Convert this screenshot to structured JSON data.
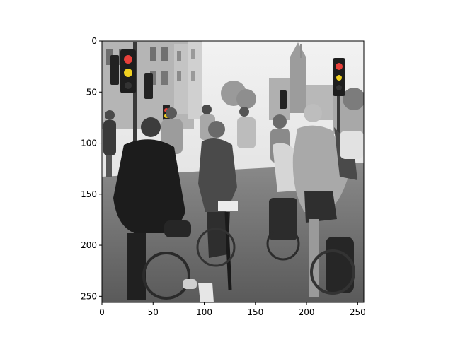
{
  "figure": {
    "image_description": "Grayscale photo with selective color: a crowd of cyclists viewed from behind at a city intersection; traffic lights glowing red and amber, a church spire in the background.",
    "x_axis": {
      "range": [
        0,
        256
      ],
      "ticks": [
        {
          "value": 0,
          "label": "0"
        },
        {
          "value": 50,
          "label": "50"
        },
        {
          "value": 100,
          "label": "100"
        },
        {
          "value": 150,
          "label": "150"
        },
        {
          "value": 200,
          "label": "200"
        },
        {
          "value": 250,
          "label": "250"
        }
      ]
    },
    "y_axis": {
      "range": [
        0,
        256
      ],
      "inverted": true,
      "ticks": [
        {
          "value": 0,
          "label": "0"
        },
        {
          "value": 50,
          "label": "50"
        },
        {
          "value": 100,
          "label": "100"
        },
        {
          "value": 150,
          "label": "150"
        },
        {
          "value": 200,
          "label": "200"
        },
        {
          "value": 250,
          "label": "250"
        }
      ]
    },
    "colors": {
      "axis": "#000000",
      "background": "#ffffff",
      "light_red": "#e8403a",
      "light_amber": "#f0d020"
    }
  }
}
